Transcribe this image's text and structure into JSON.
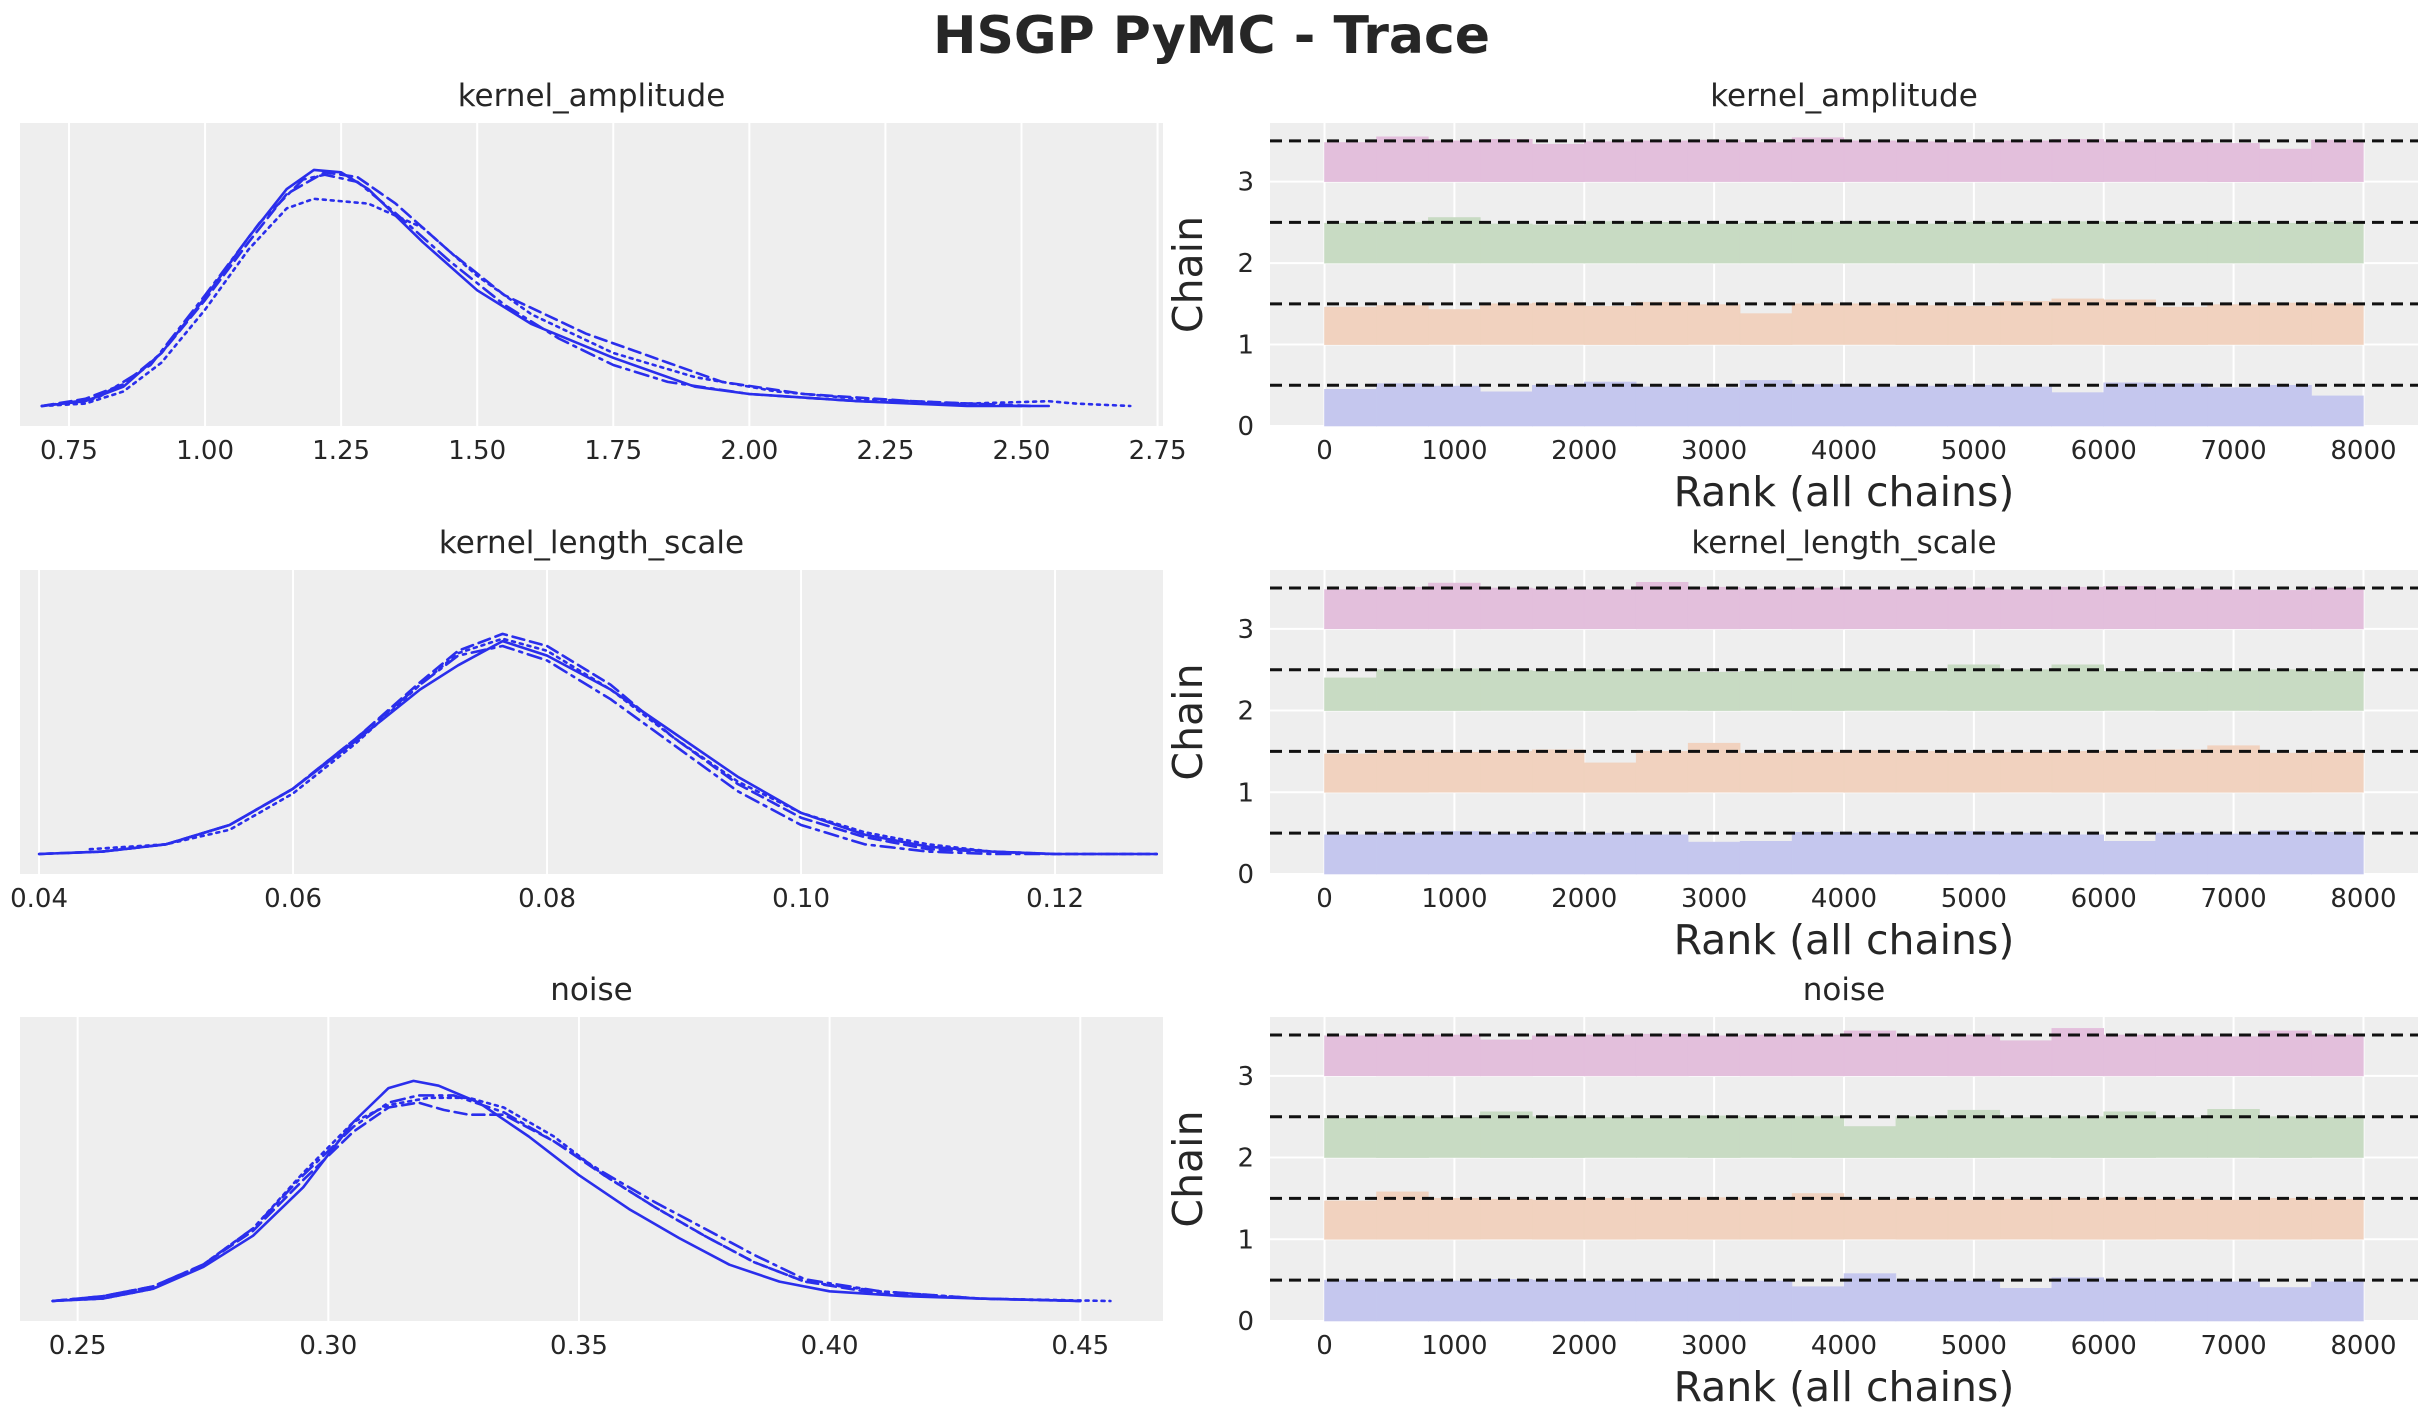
{
  "title": "HSGP PyMC - Trace",
  "colors": {
    "background": "#eeeeee",
    "grid": "#ffffff",
    "density_line": "#2a2eec",
    "text": "#262626",
    "chain_0": "#c5c7ee",
    "chain_1": "#f1d2bf",
    "chain_2": "#c8dbc3",
    "chain_3": "#e3bfdc",
    "reference_line": "#111111"
  },
  "chart_data": [
    {
      "type": "line",
      "kind": "posterior-density",
      "title": "kernel_amplitude",
      "xlim": [
        0.66,
        2.76
      ],
      "xticks": [
        0.75,
        1.0,
        1.25,
        1.5,
        1.75,
        2.0,
        2.25,
        2.5,
        2.75
      ],
      "xtick_labels": [
        "0.75",
        "1.00",
        "1.25",
        "1.50",
        "1.75",
        "2.00",
        "2.25",
        "2.50",
        "2.75"
      ],
      "ylim": [
        0,
        1.05
      ],
      "series": [
        {
          "style": "solid",
          "x": [
            0.7,
            0.78,
            0.85,
            0.92,
            1.0,
            1.08,
            1.15,
            1.2,
            1.25,
            1.3,
            1.4,
            1.5,
            1.6,
            1.75,
            1.9,
            2.0,
            2.2,
            2.4,
            2.55
          ],
          "y": [
            0.0,
            0.02,
            0.08,
            0.22,
            0.45,
            0.7,
            0.9,
            0.98,
            0.97,
            0.9,
            0.68,
            0.48,
            0.34,
            0.2,
            0.08,
            0.05,
            0.02,
            0.0,
            0.0
          ]
        },
        {
          "style": "dashed",
          "x": [
            0.7,
            0.78,
            0.85,
            0.92,
            1.0,
            1.08,
            1.15,
            1.22,
            1.28,
            1.35,
            1.45,
            1.55,
            1.7,
            1.85,
            1.95,
            2.1,
            2.3,
            2.52
          ],
          "y": [
            0.0,
            0.03,
            0.09,
            0.22,
            0.44,
            0.68,
            0.88,
            0.97,
            0.95,
            0.84,
            0.64,
            0.46,
            0.3,
            0.18,
            0.1,
            0.05,
            0.02,
            0.0
          ]
        },
        {
          "style": "dotted",
          "x": [
            0.7,
            0.78,
            0.85,
            0.92,
            1.0,
            1.08,
            1.15,
            1.2,
            1.3,
            1.4,
            1.5,
            1.6,
            1.75,
            1.9,
            2.05,
            2.2,
            2.4,
            2.55,
            2.6,
            2.7
          ],
          "y": [
            0.0,
            0.01,
            0.06,
            0.18,
            0.4,
            0.65,
            0.82,
            0.86,
            0.84,
            0.74,
            0.54,
            0.38,
            0.22,
            0.12,
            0.06,
            0.03,
            0.01,
            0.02,
            0.01,
            0.0
          ]
        },
        {
          "style": "dashdot",
          "x": [
            0.7,
            0.8,
            0.9,
            1.0,
            1.1,
            1.18,
            1.22,
            1.28,
            1.35,
            1.45,
            1.55,
            1.65,
            1.75,
            1.85,
            2.0,
            2.2,
            2.5
          ],
          "y": [
            0.0,
            0.03,
            0.17,
            0.46,
            0.76,
            0.94,
            0.96,
            0.93,
            0.8,
            0.6,
            0.42,
            0.28,
            0.17,
            0.1,
            0.05,
            0.02,
            0.0
          ]
        }
      ]
    },
    {
      "type": "bar",
      "kind": "rank-histogram",
      "title": "kernel_amplitude",
      "xlabel": "Rank (all chains)",
      "ylabel": "Chain",
      "xlim": [
        -420,
        8420
      ],
      "ylim": [
        0,
        3.72
      ],
      "xticks": [
        0,
        1000,
        2000,
        3000,
        4000,
        5000,
        6000,
        7000,
        8000
      ],
      "yticks": [
        0,
        1,
        2,
        3
      ],
      "bin_width": 400,
      "chains": [
        {
          "name": "0",
          "heights": [
            0.45,
            0.52,
            0.49,
            0.42,
            0.5,
            0.54,
            0.48,
            0.47,
            0.56,
            0.51,
            0.48,
            0.49,
            0.5,
            0.48,
            0.41,
            0.53,
            0.52,
            0.47,
            0.5,
            0.37
          ]
        },
        {
          "name": "1",
          "heights": [
            0.46,
            0.48,
            0.43,
            0.5,
            0.51,
            0.47,
            0.52,
            0.49,
            0.38,
            0.5,
            0.5,
            0.48,
            0.47,
            0.53,
            0.56,
            0.55,
            0.46,
            0.49,
            0.51,
            0.5
          ]
        },
        {
          "name": "2",
          "heights": [
            0.49,
            0.5,
            0.56,
            0.48,
            0.47,
            0.51,
            0.5,
            0.48,
            0.49,
            0.5,
            0.51,
            0.48,
            0.5,
            0.49,
            0.51,
            0.5,
            0.48,
            0.5,
            0.49,
            0.5
          ]
        },
        {
          "name": "3",
          "heights": [
            0.48,
            0.55,
            0.5,
            0.52,
            0.46,
            0.49,
            0.5,
            0.51,
            0.48,
            0.54,
            0.5,
            0.49,
            0.48,
            0.5,
            0.52,
            0.49,
            0.48,
            0.47,
            0.4,
            0.51
          ]
        }
      ]
    },
    {
      "type": "line",
      "kind": "posterior-density",
      "title": "kernel_length_scale",
      "xlim": [
        0.0385,
        0.1285
      ],
      "xticks": [
        0.04,
        0.06,
        0.08,
        0.1,
        0.12
      ],
      "xtick_labels": [
        "0.04",
        "0.06",
        "0.08",
        "0.10",
        "0.12"
      ],
      "ylim": [
        0,
        1.05
      ],
      "series": [
        {
          "style": "solid",
          "x": [
            0.04,
            0.045,
            0.05,
            0.055,
            0.06,
            0.065,
            0.07,
            0.073,
            0.0765,
            0.08,
            0.085,
            0.09,
            0.095,
            0.1,
            0.105,
            0.11,
            0.115,
            0.12,
            0.128
          ],
          "y": [
            0.0,
            0.01,
            0.04,
            0.12,
            0.27,
            0.47,
            0.68,
            0.78,
            0.88,
            0.82,
            0.68,
            0.5,
            0.32,
            0.17,
            0.08,
            0.03,
            0.01,
            0.0,
            0.0
          ]
        },
        {
          "style": "dashed",
          "x": [
            0.04,
            0.045,
            0.05,
            0.055,
            0.06,
            0.065,
            0.07,
            0.073,
            0.0765,
            0.08,
            0.085,
            0.09,
            0.095,
            0.1,
            0.105,
            0.11,
            0.115,
            0.12,
            0.128
          ],
          "y": [
            0.0,
            0.01,
            0.04,
            0.12,
            0.27,
            0.48,
            0.71,
            0.84,
            0.91,
            0.86,
            0.7,
            0.48,
            0.29,
            0.15,
            0.07,
            0.02,
            0.01,
            0.0,
            0.0
          ]
        },
        {
          "style": "dotted",
          "x": [
            0.044,
            0.05,
            0.055,
            0.06,
            0.065,
            0.07,
            0.073,
            0.0765,
            0.08,
            0.085,
            0.09,
            0.095,
            0.1,
            0.105,
            0.11,
            0.115,
            0.12,
            0.128
          ],
          "y": [
            0.02,
            0.04,
            0.1,
            0.25,
            0.46,
            0.7,
            0.83,
            0.89,
            0.84,
            0.68,
            0.48,
            0.3,
            0.17,
            0.09,
            0.04,
            0.01,
            0.0,
            0.0
          ]
        },
        {
          "style": "dashdot",
          "x": [
            0.04,
            0.045,
            0.05,
            0.055,
            0.06,
            0.065,
            0.07,
            0.073,
            0.0765,
            0.08,
            0.085,
            0.09,
            0.095,
            0.1,
            0.105,
            0.11,
            0.115,
            0.12
          ],
          "y": [
            0.0,
            0.01,
            0.04,
            0.12,
            0.27,
            0.48,
            0.7,
            0.82,
            0.86,
            0.8,
            0.64,
            0.45,
            0.26,
            0.12,
            0.04,
            0.01,
            0.0,
            0.0
          ]
        }
      ]
    },
    {
      "type": "bar",
      "kind": "rank-histogram",
      "title": "kernel_length_scale",
      "xlabel": "Rank (all chains)",
      "ylabel": "Chain",
      "xlim": [
        -420,
        8420
      ],
      "ylim": [
        0,
        3.72
      ],
      "xticks": [
        0,
        1000,
        2000,
        3000,
        4000,
        5000,
        6000,
        7000,
        8000
      ],
      "yticks": [
        0,
        1,
        2,
        3
      ],
      "bin_width": 400,
      "chains": [
        {
          "name": "0",
          "heights": [
            0.48,
            0.5,
            0.52,
            0.49,
            0.51,
            0.5,
            0.48,
            0.39,
            0.4,
            0.51,
            0.5,
            0.49,
            0.52,
            0.5,
            0.48,
            0.4,
            0.5,
            0.49,
            0.53,
            0.51
          ]
        },
        {
          "name": "1",
          "heights": [
            0.47,
            0.51,
            0.49,
            0.5,
            0.52,
            0.36,
            0.5,
            0.6,
            0.48,
            0.49,
            0.51,
            0.5,
            0.48,
            0.49,
            0.5,
            0.51,
            0.52,
            0.57,
            0.48,
            0.49
          ]
        },
        {
          "name": "2",
          "heights": [
            0.4,
            0.5,
            0.51,
            0.49,
            0.48,
            0.5,
            0.49,
            0.47,
            0.48,
            0.5,
            0.49,
            0.48,
            0.56,
            0.5,
            0.56,
            0.48,
            0.47,
            0.49,
            0.5,
            0.48
          ]
        },
        {
          "name": "3",
          "heights": [
            0.48,
            0.51,
            0.56,
            0.5,
            0.49,
            0.48,
            0.57,
            0.51,
            0.49,
            0.5,
            0.48,
            0.49,
            0.5,
            0.48,
            0.51,
            0.52,
            0.49,
            0.48,
            0.47,
            0.5
          ]
        }
      ]
    },
    {
      "type": "line",
      "kind": "posterior-density",
      "title": "noise",
      "xlim": [
        0.2385,
        0.4665
      ],
      "xticks": [
        0.25,
        0.3,
        0.35,
        0.4,
        0.45
      ],
      "xtick_labels": [
        "0.25",
        "0.30",
        "0.35",
        "0.40",
        "0.45"
      ],
      "ylim": [
        0,
        1.05
      ],
      "series": [
        {
          "style": "solid",
          "x": [
            0.245,
            0.255,
            0.265,
            0.275,
            0.285,
            0.295,
            0.305,
            0.312,
            0.317,
            0.322,
            0.33,
            0.34,
            0.35,
            0.36,
            0.37,
            0.38,
            0.39,
            0.4,
            0.415,
            0.43,
            0.45
          ],
          "y": [
            0.0,
            0.01,
            0.05,
            0.14,
            0.27,
            0.47,
            0.74,
            0.88,
            0.91,
            0.89,
            0.82,
            0.68,
            0.52,
            0.38,
            0.26,
            0.15,
            0.08,
            0.04,
            0.02,
            0.01,
            0.0
          ]
        },
        {
          "style": "dashed",
          "x": [
            0.245,
            0.255,
            0.265,
            0.275,
            0.285,
            0.295,
            0.305,
            0.312,
            0.318,
            0.323,
            0.328,
            0.335,
            0.345,
            0.355,
            0.365,
            0.375,
            0.385,
            0.395,
            0.41,
            0.43,
            0.45
          ],
          "y": [
            0.0,
            0.02,
            0.06,
            0.15,
            0.29,
            0.5,
            0.7,
            0.8,
            0.82,
            0.79,
            0.77,
            0.77,
            0.66,
            0.52,
            0.39,
            0.27,
            0.16,
            0.08,
            0.03,
            0.01,
            0.0
          ]
        },
        {
          "style": "dotted",
          "x": [
            0.245,
            0.255,
            0.265,
            0.275,
            0.285,
            0.295,
            0.305,
            0.312,
            0.32,
            0.328,
            0.335,
            0.345,
            0.355,
            0.365,
            0.375,
            0.385,
            0.395,
            0.41,
            0.43,
            0.456
          ],
          "y": [
            0.0,
            0.01,
            0.05,
            0.15,
            0.3,
            0.53,
            0.74,
            0.81,
            0.84,
            0.84,
            0.8,
            0.68,
            0.52,
            0.39,
            0.27,
            0.16,
            0.08,
            0.04,
            0.01,
            0.0
          ]
        },
        {
          "style": "dashdot",
          "x": [
            0.245,
            0.255,
            0.265,
            0.275,
            0.285,
            0.295,
            0.305,
            0.312,
            0.318,
            0.325,
            0.335,
            0.345,
            0.355,
            0.365,
            0.375,
            0.385,
            0.395,
            0.41,
            0.43,
            0.45
          ],
          "y": [
            0.0,
            0.02,
            0.06,
            0.15,
            0.3,
            0.52,
            0.72,
            0.82,
            0.85,
            0.85,
            0.78,
            0.66,
            0.53,
            0.41,
            0.3,
            0.19,
            0.09,
            0.04,
            0.01,
            0.0
          ]
        }
      ]
    },
    {
      "type": "bar",
      "kind": "rank-histogram",
      "title": "noise",
      "xlabel": "Rank (all chains)",
      "ylabel": "Chain",
      "xlim": [
        -420,
        8420
      ],
      "ylim": [
        0,
        3.72
      ],
      "xticks": [
        0,
        1000,
        2000,
        3000,
        4000,
        5000,
        6000,
        7000,
        8000
      ],
      "yticks": [
        0,
        1,
        2,
        3
      ],
      "bin_width": 400,
      "chains": [
        {
          "name": "0",
          "heights": [
            0.5,
            0.48,
            0.49,
            0.51,
            0.5,
            0.49,
            0.48,
            0.5,
            0.49,
            0.42,
            0.58,
            0.5,
            0.49,
            0.4,
            0.53,
            0.5,
            0.49,
            0.48,
            0.41,
            0.48
          ]
        },
        {
          "name": "1",
          "heights": [
            0.47,
            0.58,
            0.5,
            0.49,
            0.48,
            0.5,
            0.49,
            0.51,
            0.48,
            0.56,
            0.49,
            0.5,
            0.48,
            0.49,
            0.5,
            0.51,
            0.49,
            0.48,
            0.5,
            0.49
          ]
        },
        {
          "name": "2",
          "heights": [
            0.48,
            0.5,
            0.49,
            0.56,
            0.5,
            0.49,
            0.48,
            0.51,
            0.49,
            0.5,
            0.38,
            0.5,
            0.58,
            0.49,
            0.5,
            0.56,
            0.49,
            0.59,
            0.5,
            0.49
          ]
        },
        {
          "name": "3",
          "heights": [
            0.49,
            0.51,
            0.5,
            0.44,
            0.49,
            0.5,
            0.51,
            0.49,
            0.5,
            0.5,
            0.55,
            0.49,
            0.5,
            0.43,
            0.58,
            0.5,
            0.49,
            0.48,
            0.55,
            0.5
          ]
        }
      ]
    }
  ]
}
